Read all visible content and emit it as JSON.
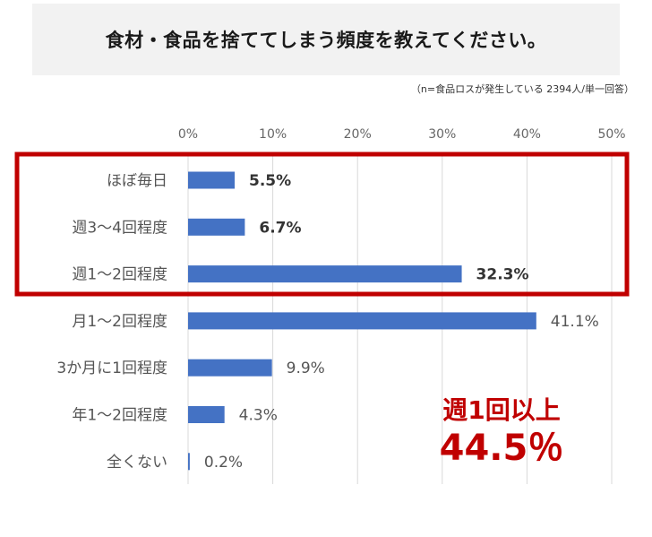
{
  "title": "食材・食品を捨ててしまう頻度を教えてください。",
  "sample_note": "（n=食品ロスが発生している 2394人/単一回答）",
  "callout": {
    "line1": "週1回以上",
    "line2": "44.5％"
  },
  "colors": {
    "bar": "#4472c4",
    "highlight": "#c00000",
    "grid": "#d9d9d9"
  },
  "chart_data": {
    "type": "bar",
    "orientation": "horizontal",
    "categories": [
      "ほぼ毎日",
      "週3～4回程度",
      "週1～2回程度",
      "月1～2回程度",
      "3か月に1回程度",
      "年1～2回程度",
      "全くない"
    ],
    "values": [
      5.5,
      6.7,
      32.3,
      41.1,
      9.9,
      4.3,
      0.2
    ],
    "value_labels": [
      "5.5%",
      "6.7%",
      "32.3%",
      "41.1%",
      "9.9%",
      "4.3%",
      "0.2%"
    ],
    "highlighted_categories": [
      "ほぼ毎日",
      "週3～4回程度",
      "週1～2回程度"
    ],
    "xlim": [
      0,
      50
    ],
    "ticks": [
      0,
      10,
      20,
      30,
      40,
      50
    ],
    "tick_labels": [
      "0%",
      "10%",
      "20%",
      "30%",
      "40%",
      "50%"
    ],
    "axis_position": "top",
    "grid": true,
    "legend": "none"
  }
}
